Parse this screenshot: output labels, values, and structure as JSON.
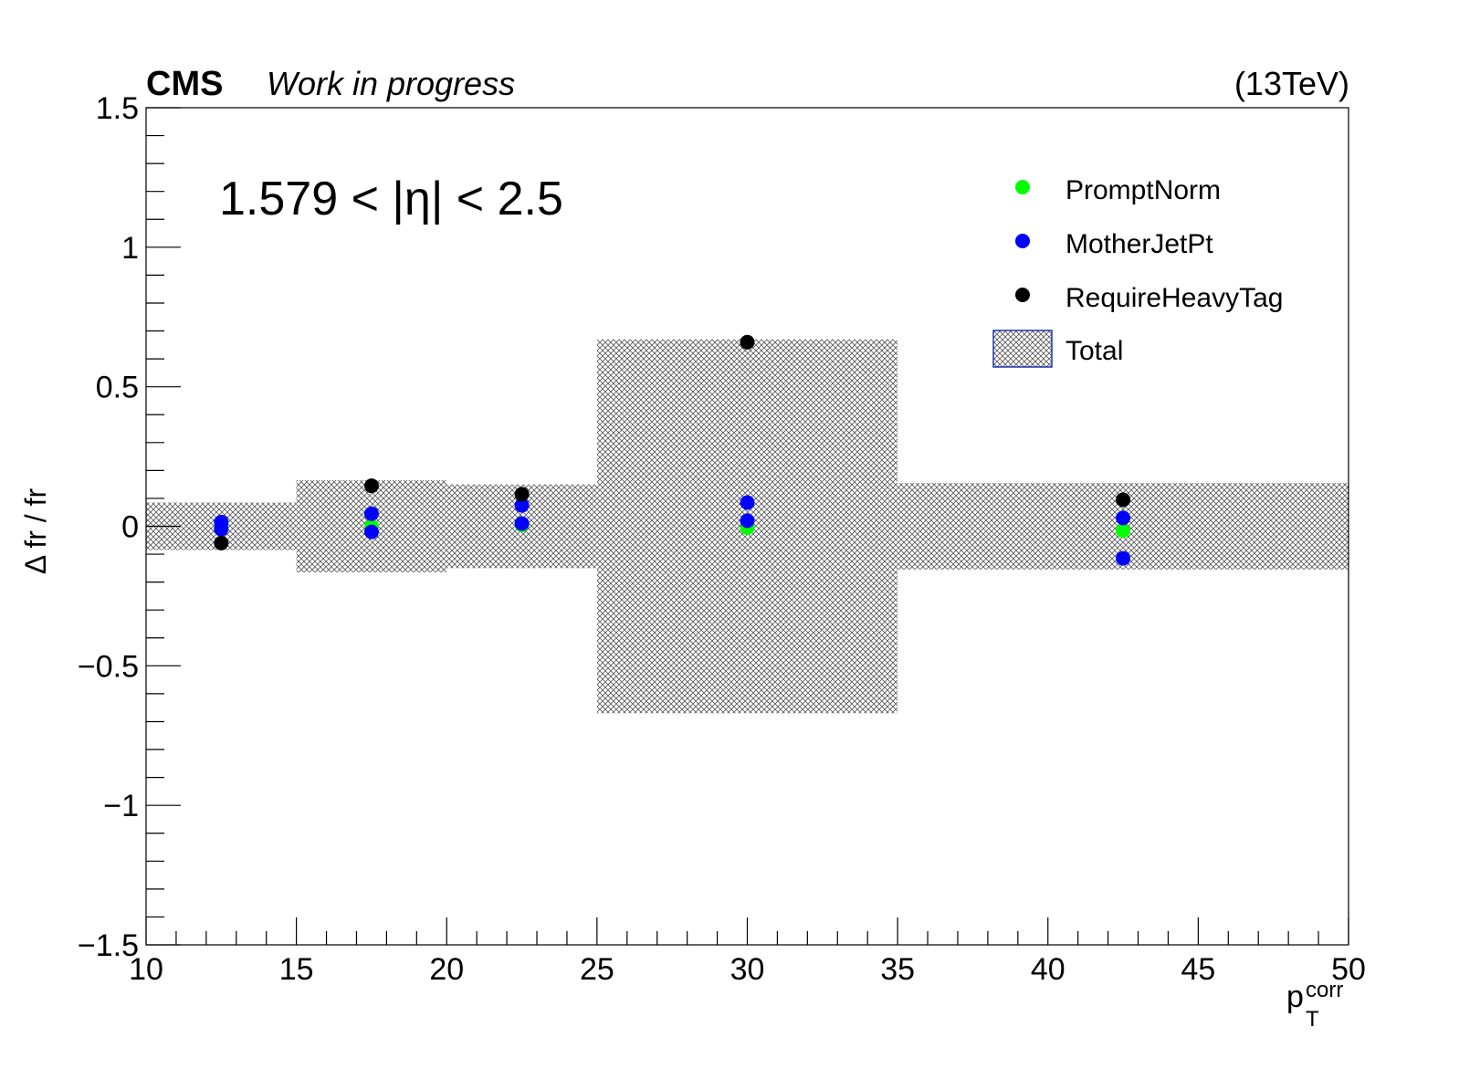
{
  "header": {
    "experiment": "CMS",
    "status": "Work in progress",
    "energy": "(13TeV)"
  },
  "chart_data": {
    "type": "scatter",
    "annotation": "1.579 < |η| < 2.5",
    "xlabel": "p",
    "xlabel_sub": "T",
    "xlabel_sup": "corr",
    "ylabel": "Δ fr / fr",
    "xlim": [
      10,
      50
    ],
    "ylim": [
      -1.5,
      1.5
    ],
    "x_ticks": [
      10,
      15,
      20,
      25,
      30,
      35,
      40,
      45,
      50
    ],
    "x_tick_labels": [
      "10",
      "15",
      "20",
      "25",
      "30",
      "35",
      "40",
      "45",
      "50"
    ],
    "y_ticks": [
      -1.5,
      -1,
      -0.5,
      0,
      0.5,
      1,
      1.5
    ],
    "y_tick_labels": [
      "−1.5",
      "−1",
      "−0.5",
      "0",
      "0.5",
      "1",
      "1.5"
    ],
    "legend_position": "top-right",
    "bins": [
      {
        "xlow": 10,
        "xhigh": 15,
        "total": 0.085
      },
      {
        "xlow": 15,
        "xhigh": 20,
        "total": 0.165
      },
      {
        "xlow": 20,
        "xhigh": 25,
        "total": 0.15
      },
      {
        "xlow": 25,
        "xhigh": 35,
        "total": 0.67
      },
      {
        "xlow": 35,
        "xhigh": 50,
        "total": 0.155
      }
    ],
    "band_name": "Total",
    "series": [
      {
        "name": "PromptNorm",
        "color": "#00ff00",
        "x": [
          12.5,
          17.5,
          22.5,
          30,
          42.5
        ],
        "y": [
          0.0,
          0.0,
          0.005,
          -0.005,
          -0.015
        ]
      },
      {
        "name": "MotherJetPt",
        "color": "#0000ff",
        "x": [
          12.5,
          17.5,
          22.5,
          30,
          42.5
        ],
        "y": [
          0.015,
          0.045,
          0.075,
          0.085,
          0.03
        ]
      },
      {
        "name": "MotherJetPt",
        "color": "#0000ff",
        "x": [
          12.5,
          17.5,
          22.5,
          30,
          42.5
        ],
        "y": [
          -0.01,
          -0.02,
          0.01,
          0.02,
          -0.115
        ],
        "legend": false
      },
      {
        "name": "RequireHeavyTag",
        "color": "#000000",
        "x": [
          12.5,
          17.5,
          22.5,
          30,
          42.5
        ],
        "y": [
          -0.06,
          0.145,
          0.115,
          0.66,
          0.095
        ]
      }
    ]
  }
}
